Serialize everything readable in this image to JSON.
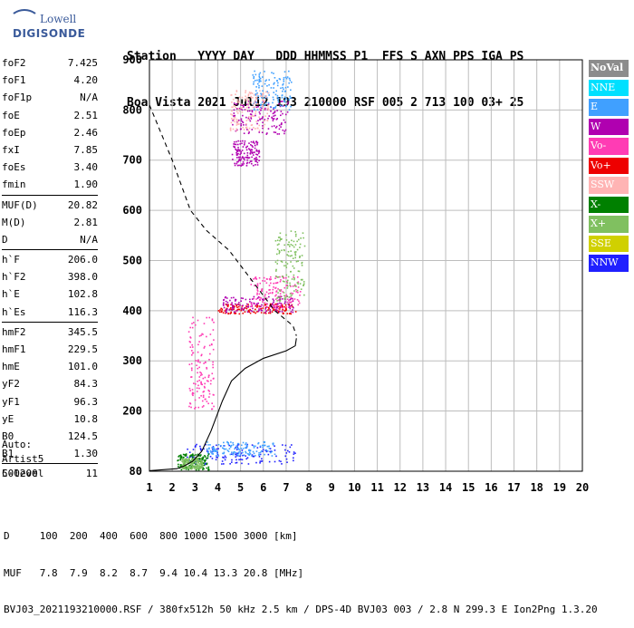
{
  "logo": {
    "line1": "Lowell",
    "line2": "DIGISONDE"
  },
  "header": {
    "labels": [
      "Station",
      "YYYY",
      "DAY",
      "DDD",
      "HHMMSS",
      "P1",
      "FFS",
      "S",
      "AXN",
      "PPS",
      "IGA",
      "PS"
    ],
    "values": [
      "Boa Vista",
      "2021",
      "Jul12",
      "193",
      "210000",
      "RSF",
      "005",
      "2",
      "713",
      "100",
      "03+",
      "25"
    ]
  },
  "params": [
    {
      "group": [
        {
          "name": "foF2",
          "value": "7.425"
        },
        {
          "name": "foF1",
          "value": "4.20"
        },
        {
          "name": "foF1p",
          "value": "N/A"
        },
        {
          "name": "foE",
          "value": "2.51"
        },
        {
          "name": "foEp",
          "value": "2.46"
        },
        {
          "name": "fxI",
          "value": "7.85"
        },
        {
          "name": "foEs",
          "value": "3.40"
        },
        {
          "name": "fmin",
          "value": "1.90"
        }
      ]
    },
    {
      "group": [
        {
          "name": "MUF(D)",
          "value": "20.82"
        },
        {
          "name": "M(D)",
          "value": "2.81"
        },
        {
          "name": "D",
          "value": "N/A"
        }
      ]
    },
    {
      "group": [
        {
          "name": "h`F",
          "value": "206.0"
        },
        {
          "name": "h`F2",
          "value": "398.0"
        },
        {
          "name": "h`E",
          "value": "102.8"
        },
        {
          "name": "h`Es",
          "value": "116.3"
        }
      ]
    },
    {
      "group": [
        {
          "name": "hmF2",
          "value": "345.5"
        },
        {
          "name": "hmF1",
          "value": "229.5"
        },
        {
          "name": "hmE",
          "value": "101.0"
        },
        {
          "name": "yF2",
          "value": "84.3"
        },
        {
          "name": "yF1",
          "value": "96.3"
        },
        {
          "name": "yE",
          "value": "10.8"
        },
        {
          "name": "B0",
          "value": "124.5"
        },
        {
          "name": "B1",
          "value": "1.30"
        }
      ]
    },
    {
      "group": [
        {
          "name": "C-level",
          "value": "11"
        }
      ]
    }
  ],
  "auto": {
    "line1": "Auto:",
    "line2": "Artist5",
    "line3": "500200"
  },
  "legend": [
    {
      "label": "NoVal",
      "color": "#8c8c8c"
    },
    {
      "label": "NNE",
      "color": "#00e0ff"
    },
    {
      "label": "E",
      "color": "#40a0ff"
    },
    {
      "label": "W",
      "color": "#b000b0"
    },
    {
      "label": "Vo-",
      "color": "#ff3cb4"
    },
    {
      "label": "Vo+",
      "color": "#ee0000"
    },
    {
      "label": "SSW",
      "color": "#ffb4b4"
    },
    {
      "label": "X-",
      "color": "#008000"
    },
    {
      "label": "X+",
      "color": "#80c060"
    },
    {
      "label": "SSE",
      "color": "#d0d000"
    },
    {
      "label": "NNW",
      "color": "#2020ff"
    }
  ],
  "footer": {
    "row1_label": "D",
    "row1_values": [
      "100",
      "200",
      "400",
      "600",
      "800",
      "1000",
      "1500",
      "3000"
    ],
    "row1_unit": "[km]",
    "row2_label": "MUF",
    "row2_values": [
      "7.8",
      "7.9",
      "8.2",
      "8.7",
      "9.4",
      "10.4",
      "13.3",
      "20.8"
    ],
    "row2_unit": "[MHz]",
    "row3": "BVJ03_2021193210000.RSF / 380fx512h 50 kHz 2.5 km / DPS-4D BVJ03 003 / 2.8 N 299.3 E Ion2Png 1.3.20"
  },
  "chart_data": {
    "type": "scatter",
    "xlim": [
      1,
      20
    ],
    "ylim": [
      80,
      900
    ],
    "xticks": [
      1,
      2,
      3,
      4,
      5,
      6,
      7,
      8,
      9,
      10,
      11,
      12,
      13,
      14,
      15,
      16,
      17,
      18,
      19,
      20
    ],
    "yticks": [
      80,
      200,
      300,
      400,
      500,
      600,
      700,
      800,
      900
    ],
    "grid": true,
    "series": [
      {
        "style": "solid",
        "points": [
          [
            1,
            81
          ],
          [
            2.2,
            85
          ],
          [
            2.5,
            90
          ],
          [
            2.9,
            100
          ],
          [
            3.3,
            120
          ],
          [
            3.7,
            160
          ],
          [
            4.2,
            220
          ],
          [
            4.6,
            260
          ],
          [
            5.2,
            285
          ],
          [
            6,
            305
          ],
          [
            7,
            320
          ],
          [
            7.4,
            330
          ],
          [
            7.45,
            345
          ]
        ]
      },
      {
        "style": "dashed",
        "points": [
          [
            1,
            810
          ],
          [
            2,
            700
          ],
          [
            2.8,
            600
          ],
          [
            3.5,
            560
          ],
          [
            4.5,
            520
          ],
          [
            5.5,
            460
          ],
          [
            6.5,
            400
          ],
          [
            7.3,
            370
          ],
          [
            7.45,
            350
          ]
        ]
      }
    ],
    "echo_clusters": [
      {
        "color": "#2020ff",
        "x": [
          2.6,
          7.5
        ],
        "y": [
          95,
          135
        ]
      },
      {
        "color": "#40a0ff",
        "x": [
          3.5,
          6.5
        ],
        "y": [
          112,
          140
        ]
      },
      {
        "color": "#008000",
        "x": [
          2.2,
          3.6
        ],
        "y": [
          84,
          116
        ]
      },
      {
        "color": "#80c060",
        "x": [
          2.4,
          3.3
        ],
        "y": [
          86,
          108
        ]
      },
      {
        "color": "#ff3cb4",
        "x": [
          2.7,
          3.8
        ],
        "y": [
          205,
          390
        ]
      },
      {
        "color": "#ee0000",
        "x": [
          4.0,
          7.4
        ],
        "y": [
          395,
          415
        ]
      },
      {
        "color": "#b000b0",
        "x": [
          4.2,
          7.3
        ],
        "y": [
          398,
          430
        ]
      },
      {
        "color": "#ff3cb4",
        "x": [
          5.4,
          7.6
        ],
        "y": [
          405,
          470
        ]
      },
      {
        "color": "#80c060",
        "x": [
          6.5,
          7.8
        ],
        "y": [
          420,
          560
        ]
      },
      {
        "color": "#b000b0",
        "x": [
          4.6,
          7.1
        ],
        "y": [
          750,
          820
        ]
      },
      {
        "color": "#40a0ff",
        "x": [
          5.5,
          7.2
        ],
        "y": [
          800,
          880
        ]
      },
      {
        "color": "#ffb4b4",
        "x": [
          4.5,
          6.2
        ],
        "y": [
          760,
          840
        ]
      },
      {
        "color": "#b000b0",
        "x": [
          4.6,
          5.8
        ],
        "y": [
          690,
          740
        ]
      }
    ]
  }
}
